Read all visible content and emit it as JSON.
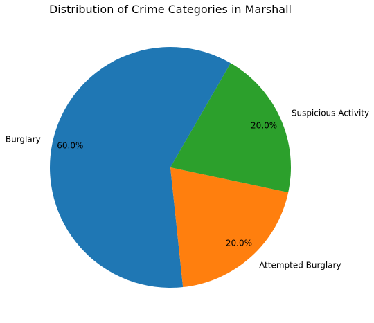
{
  "chart_data": {
    "type": "pie",
    "title": "Distribution of Crime Categories in Marshall",
    "labels": [
      "Burglary",
      "Attempted Burglary",
      "Suspicious Activity"
    ],
    "values": [
      60.0,
      20.0,
      20.0
    ],
    "percent_labels": [
      "60.0%",
      "20.0%",
      "20.0%"
    ],
    "colors": [
      "#1f77b4",
      "#ff7f0e",
      "#2ca02c"
    ],
    "start_angle_deg": 60,
    "direction": "counterclockwise"
  }
}
